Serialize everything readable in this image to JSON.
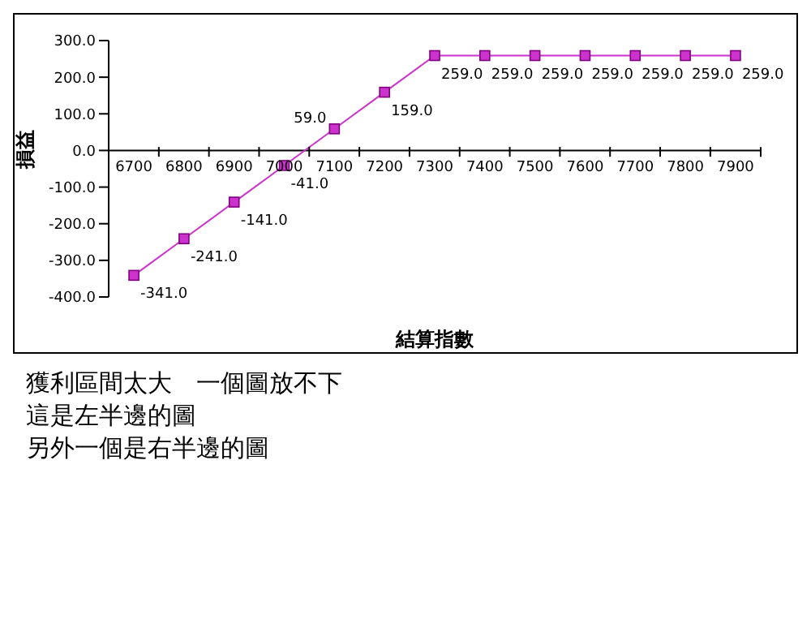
{
  "chart_data": {
    "type": "line",
    "xlabel": "結算指數",
    "ylabel": "損益",
    "categories": [
      "6700",
      "6800",
      "6900",
      "7000",
      "7100",
      "7200",
      "7300",
      "7400",
      "7500",
      "7600",
      "7700",
      "7800",
      "7900"
    ],
    "series": [
      {
        "color": "#cc33cc",
        "values": [
          -341,
          -241,
          -141,
          -41,
          59,
          159,
          259,
          259,
          259,
          259,
          259,
          259,
          259
        ],
        "value_labels": [
          "-341.0",
          "-241.0",
          "-141.0",
          "-41.0",
          "59.0",
          "159.0",
          "259.0",
          "259.0",
          "259.0",
          "259.0",
          "259.0",
          "259.0",
          "259.0"
        ]
      }
    ],
    "ylim": [
      -400,
      300
    ],
    "yticks": [
      {
        "value": -400,
        "label": "-400.0"
      },
      {
        "value": -300,
        "label": "-300.0"
      },
      {
        "value": -200,
        "label": "-200.0"
      },
      {
        "value": -100,
        "label": "-100.0"
      },
      {
        "value": 0,
        "label": "0.0"
      },
      {
        "value": 100,
        "label": "100.0"
      },
      {
        "value": 200,
        "label": "200.0"
      },
      {
        "value": 300,
        "label": "300.0"
      }
    ],
    "marker": "square",
    "line_style": "solid",
    "grid": false,
    "legend": false,
    "annotations": [
      "獲利區間太大　一個圖放不下",
      "這是左半邊的圖",
      "另外一個是右半邊的圖"
    ]
  }
}
